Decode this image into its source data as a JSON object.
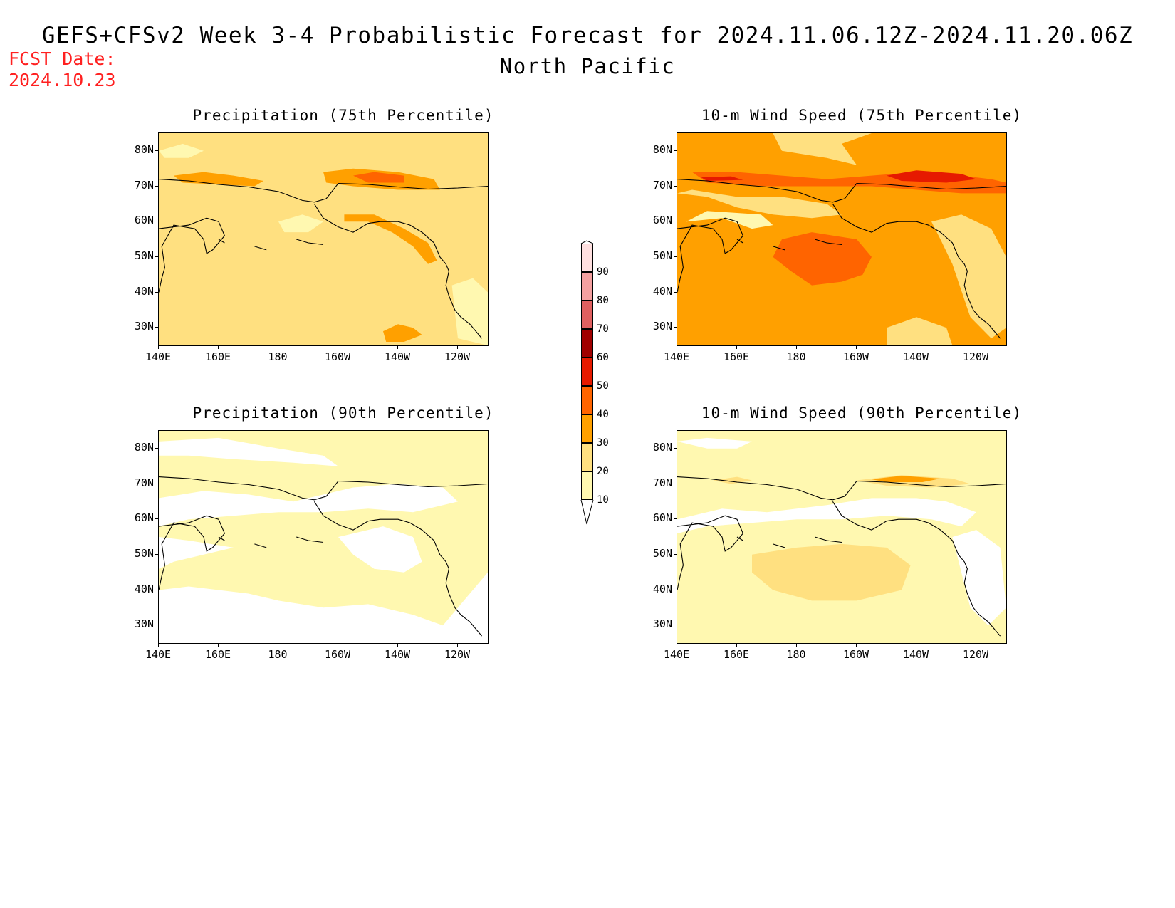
{
  "header": {
    "title": "GEFS+CFSv2 Week 3-4 Probabilistic Forecast for 2024.11.06.12Z-2024.11.20.06Z",
    "subtitle": "North Pacific",
    "fcst_label": "FCST Date:",
    "fcst_date": "2024.10.23"
  },
  "axes": {
    "lat_labels": [
      "80N",
      "70N",
      "60N",
      "50N",
      "40N",
      "30N"
    ],
    "lon_labels": [
      "140E",
      "160E",
      "180",
      "160W",
      "140W",
      "120W"
    ],
    "lat_range": [
      25,
      85
    ],
    "lon_range": [
      140,
      250
    ]
  },
  "panels": [
    {
      "id": "precip75",
      "title": "Precipitation (75th Percentile)",
      "base_level": 20
    },
    {
      "id": "wind75",
      "title": "10-m Wind Speed (75th Percentile)",
      "base_level": 30
    },
    {
      "id": "precip90",
      "title": "Precipitation (90th Percentile)",
      "base_level": 10
    },
    {
      "id": "wind90",
      "title": "10-m Wind Speed (90th Percentile)",
      "base_level": 10
    }
  ],
  "colorbar": {
    "levels": [
      "10",
      "20",
      "30",
      "40",
      "50",
      "60",
      "70",
      "80",
      "90"
    ],
    "colors": [
      "#fff8b0",
      "#ffe080",
      "#ffa000",
      "#ff6400",
      "#e61a00",
      "#a00000",
      "#e06060",
      "#f4a0a0",
      "#ffe0e0"
    ]
  }
}
